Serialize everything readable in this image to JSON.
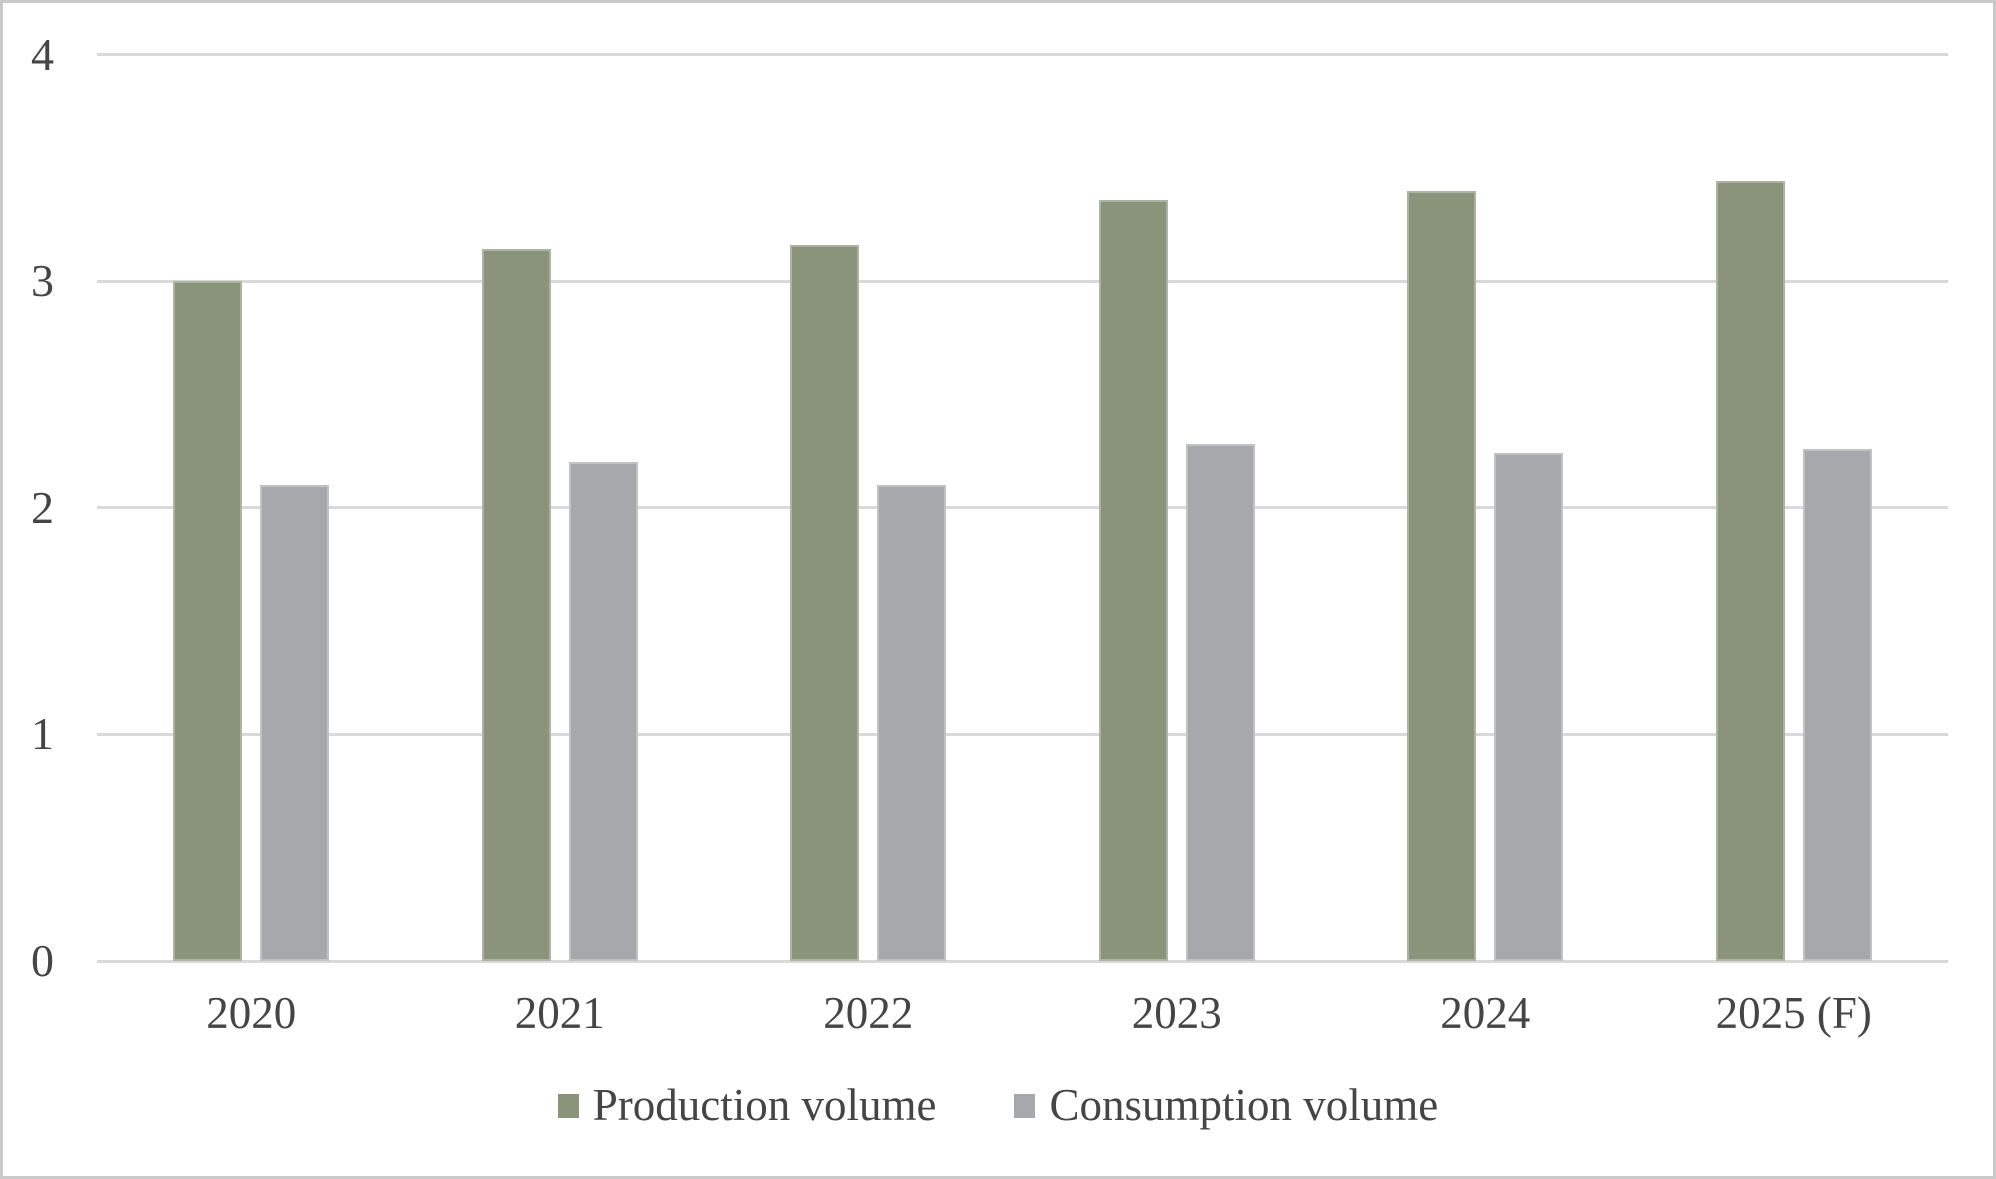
{
  "chart_data": {
    "type": "bar",
    "title": "",
    "xlabel": "",
    "ylabel": "",
    "categories": [
      "2020",
      "2021",
      "2022",
      "2023",
      "2024",
      "2025 (F)"
    ],
    "series": [
      {
        "name": "Production volume",
        "color": "#8A947B",
        "values": [
          3.0,
          3.14,
          3.16,
          3.36,
          3.4,
          3.44
        ]
      },
      {
        "name": "Consumption volume",
        "color": "#A6A8AB",
        "values": [
          2.1,
          2.2,
          2.1,
          2.28,
          2.24,
          2.26
        ]
      }
    ],
    "ylim": [
      0,
      4
    ],
    "yticks": [
      "0",
      "1",
      "2",
      "3",
      "4"
    ],
    "grid": true,
    "legend_position": "bottom"
  },
  "styles": {
    "background": "#FFFFFF",
    "gridline_color": "#D9D9D9",
    "text_color": "#454545",
    "border_color": "#C9C9C9"
  }
}
